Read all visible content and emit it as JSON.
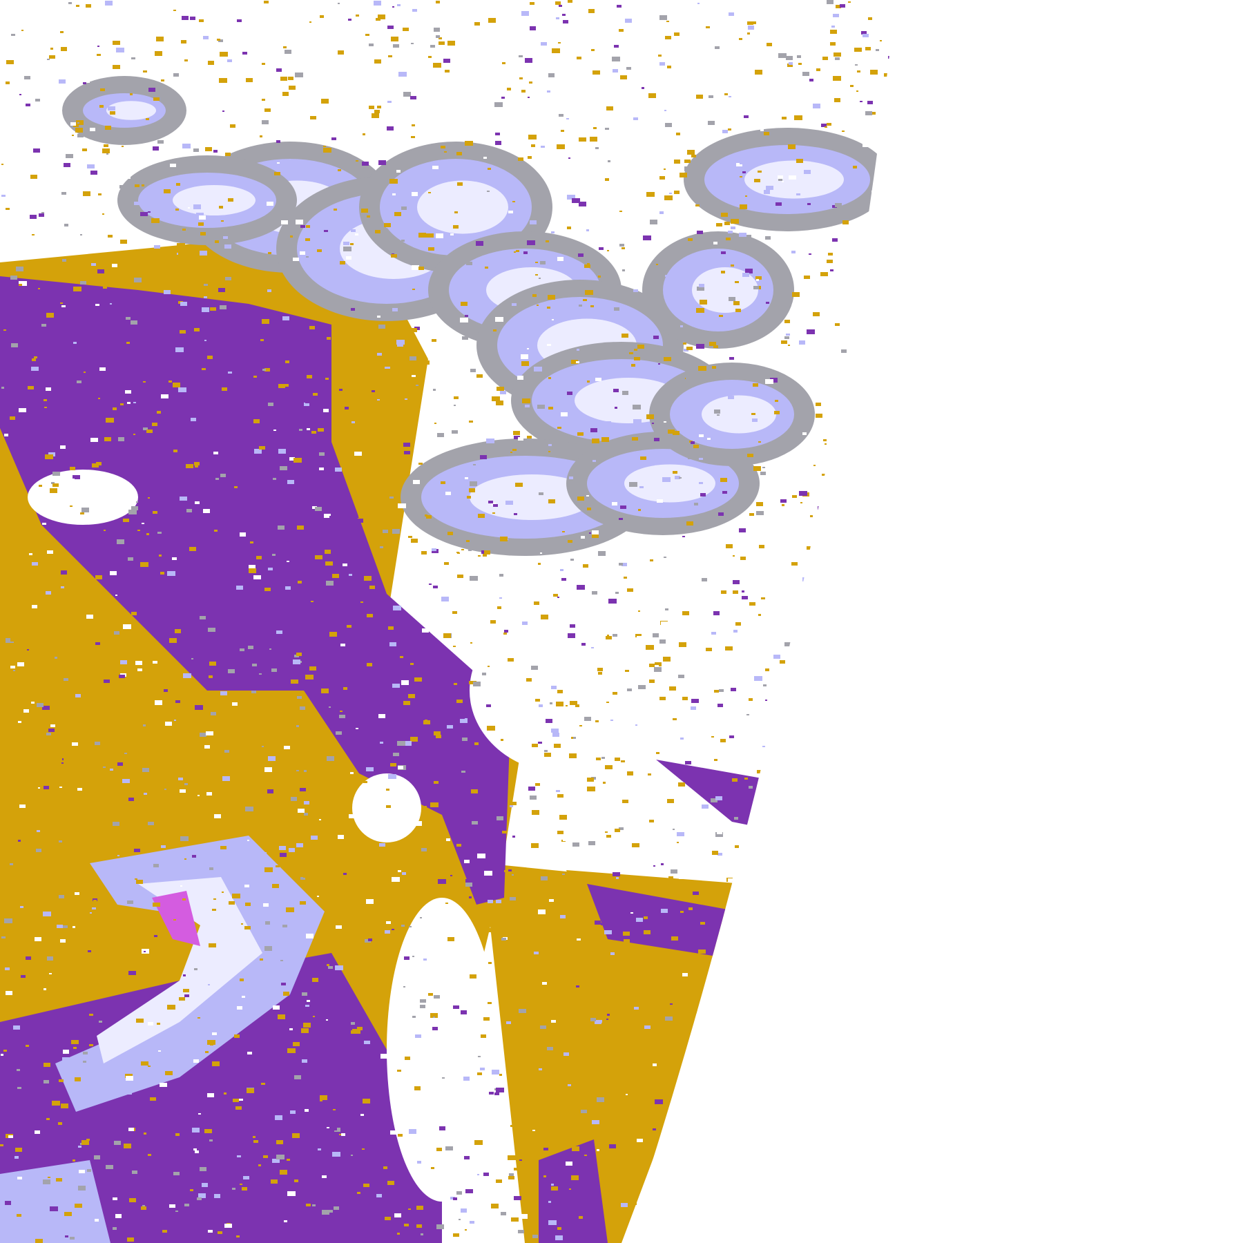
{
  "image": {
    "kind": "satellite cloud-classification imagery",
    "colors": {
      "background": "#ffffff",
      "low_cloud_gold": "#d4a20a",
      "dense_purple": "#7c33b0",
      "magenta": "#d45ce0",
      "cirrus_lavender": "#b8b8f8",
      "bright_cloud": "#ececff",
      "mid_gray": "#a3a3ab",
      "blue_violet": "#9a9af0"
    }
  }
}
